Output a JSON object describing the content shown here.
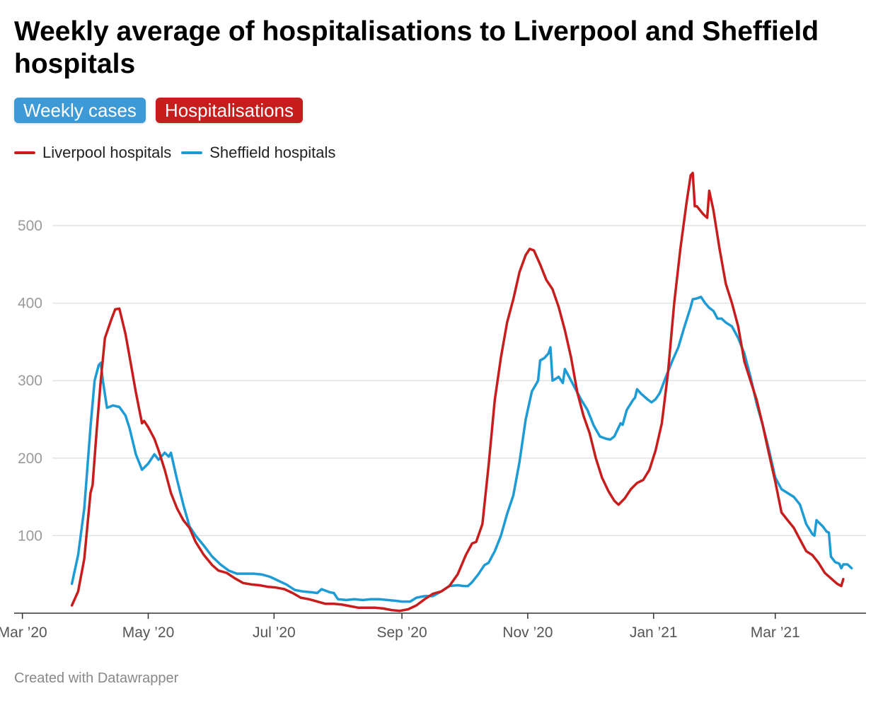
{
  "title": "Weekly average of hospitalisations to Liverpool and Sheffield hospitals",
  "toggles": [
    {
      "label": "Weekly cases",
      "color": "#3d9ad6"
    },
    {
      "label": "Hospitalisations",
      "color": "#c71e1d"
    }
  ],
  "footer": "Created with Datawrapper",
  "chart_data": {
    "type": "line",
    "title": "Weekly average of hospitalisations to Liverpool and Sheffield hospitals",
    "xlabel": "",
    "ylabel": "",
    "x_axis": {
      "type": "date",
      "range": [
        "2020-03-01",
        "2021-04-30"
      ],
      "tick_labels": [
        "Mar ’20",
        "May ’20",
        "Jul ’20",
        "Sep ’20",
        "Nov ’20",
        "Jan ’21",
        "Mar ’21"
      ],
      "tick_dates": [
        "2020-03-01",
        "2020-05-01",
        "2020-07-01",
        "2020-09-01",
        "2020-11-01",
        "2021-01-01",
        "2021-03-01"
      ]
    },
    "y_axis": {
      "range": [
        0,
        570
      ],
      "ticks": [
        100,
        200,
        300,
        400,
        500
      ]
    },
    "grid": true,
    "legend_position": "top-left",
    "series": [
      {
        "name": "Liverpool hospitals",
        "color": "#c71e1d",
        "points": [
          [
            "2020-03-25",
            10
          ],
          [
            "2020-03-28",
            28
          ],
          [
            "2020-03-31",
            70
          ],
          [
            "2020-04-03",
            155
          ],
          [
            "2020-04-04",
            165
          ],
          [
            "2020-04-06",
            235
          ],
          [
            "2020-04-08",
            300
          ],
          [
            "2020-04-10",
            355
          ],
          [
            "2020-04-13",
            378
          ],
          [
            "2020-04-15",
            392
          ],
          [
            "2020-04-17",
            393
          ],
          [
            "2020-04-20",
            360
          ],
          [
            "2020-04-22",
            330
          ],
          [
            "2020-04-25",
            285
          ],
          [
            "2020-04-28",
            245
          ],
          [
            "2020-04-29",
            248
          ],
          [
            "2020-05-01",
            240
          ],
          [
            "2020-05-04",
            225
          ],
          [
            "2020-05-06",
            210
          ],
          [
            "2020-05-09",
            185
          ],
          [
            "2020-05-12",
            155
          ],
          [
            "2020-05-15",
            135
          ],
          [
            "2020-05-18",
            120
          ],
          [
            "2020-05-21",
            110
          ],
          [
            "2020-05-24",
            92
          ],
          [
            "2020-05-28",
            75
          ],
          [
            "2020-06-01",
            62
          ],
          [
            "2020-06-04",
            55
          ],
          [
            "2020-06-08",
            52
          ],
          [
            "2020-06-12",
            45
          ],
          [
            "2020-06-16",
            39
          ],
          [
            "2020-06-20",
            37
          ],
          [
            "2020-06-24",
            36
          ],
          [
            "2020-06-28",
            34
          ],
          [
            "2020-07-02",
            33
          ],
          [
            "2020-07-06",
            31
          ],
          [
            "2020-07-10",
            26
          ],
          [
            "2020-07-14",
            20
          ],
          [
            "2020-07-18",
            18
          ],
          [
            "2020-07-22",
            15
          ],
          [
            "2020-07-26",
            12
          ],
          [
            "2020-07-30",
            12
          ],
          [
            "2020-08-03",
            11
          ],
          [
            "2020-08-07",
            9
          ],
          [
            "2020-08-11",
            7
          ],
          [
            "2020-08-15",
            7
          ],
          [
            "2020-08-19",
            7
          ],
          [
            "2020-08-23",
            6
          ],
          [
            "2020-08-27",
            4
          ],
          [
            "2020-08-31",
            3
          ],
          [
            "2020-09-04",
            5
          ],
          [
            "2020-09-08",
            10
          ],
          [
            "2020-09-12",
            18
          ],
          [
            "2020-09-16",
            25
          ],
          [
            "2020-09-20",
            28
          ],
          [
            "2020-09-24",
            35
          ],
          [
            "2020-09-28",
            50
          ],
          [
            "2020-10-02",
            75
          ],
          [
            "2020-10-05",
            90
          ],
          [
            "2020-10-07",
            92
          ],
          [
            "2020-10-10",
            115
          ],
          [
            "2020-10-13",
            190
          ],
          [
            "2020-10-16",
            275
          ],
          [
            "2020-10-19",
            330
          ],
          [
            "2020-10-22",
            375
          ],
          [
            "2020-10-25",
            405
          ],
          [
            "2020-10-28",
            440
          ],
          [
            "2020-10-31",
            462
          ],
          [
            "2020-11-02",
            470
          ],
          [
            "2020-11-04",
            468
          ],
          [
            "2020-11-07",
            450
          ],
          [
            "2020-11-10",
            430
          ],
          [
            "2020-11-13",
            418
          ],
          [
            "2020-11-16",
            395
          ],
          [
            "2020-11-19",
            365
          ],
          [
            "2020-11-22",
            330
          ],
          [
            "2020-11-25",
            285
          ],
          [
            "2020-11-28",
            255
          ],
          [
            "2020-12-01",
            232
          ],
          [
            "2020-12-04",
            200
          ],
          [
            "2020-12-07",
            175
          ],
          [
            "2020-12-10",
            158
          ],
          [
            "2020-12-13",
            145
          ],
          [
            "2020-12-15",
            140
          ],
          [
            "2020-12-18",
            148
          ],
          [
            "2020-12-21",
            160
          ],
          [
            "2020-12-24",
            168
          ],
          [
            "2020-12-27",
            172
          ],
          [
            "2020-12-30",
            185
          ],
          [
            "2021-01-02",
            210
          ],
          [
            "2021-01-05",
            245
          ],
          [
            "2021-01-08",
            310
          ],
          [
            "2021-01-11",
            400
          ],
          [
            "2021-01-14",
            470
          ],
          [
            "2021-01-17",
            530
          ],
          [
            "2021-01-19",
            565
          ],
          [
            "2021-01-20",
            568
          ],
          [
            "2021-01-21",
            525
          ],
          [
            "2021-01-22",
            525
          ],
          [
            "2021-01-25",
            515
          ],
          [
            "2021-01-27",
            510
          ],
          [
            "2021-01-28",
            545
          ],
          [
            "2021-01-30",
            520
          ],
          [
            "2021-02-02",
            470
          ],
          [
            "2021-02-05",
            425
          ],
          [
            "2021-02-08",
            400
          ],
          [
            "2021-02-11",
            370
          ],
          [
            "2021-02-14",
            325
          ],
          [
            "2021-02-17",
            300
          ],
          [
            "2021-02-20",
            275
          ],
          [
            "2021-02-23",
            242
          ],
          [
            "2021-02-26",
            205
          ],
          [
            "2021-03-01",
            170
          ],
          [
            "2021-03-04",
            130
          ],
          [
            "2021-03-07",
            120
          ],
          [
            "2021-03-10",
            110
          ],
          [
            "2021-03-13",
            95
          ],
          [
            "2021-03-16",
            80
          ],
          [
            "2021-03-19",
            75
          ],
          [
            "2021-03-22",
            65
          ],
          [
            "2021-03-25",
            52
          ],
          [
            "2021-03-28",
            45
          ],
          [
            "2021-03-31",
            38
          ],
          [
            "2021-04-02",
            35
          ],
          [
            "2021-04-03",
            44
          ]
        ]
      },
      {
        "name": "Sheffield hospitals",
        "color": "#1d9bd4",
        "points": [
          [
            "2020-03-25",
            38
          ],
          [
            "2020-03-28",
            75
          ],
          [
            "2020-03-31",
            135
          ],
          [
            "2020-04-03",
            240
          ],
          [
            "2020-04-05",
            300
          ],
          [
            "2020-04-07",
            320
          ],
          [
            "2020-04-08",
            323
          ],
          [
            "2020-04-09",
            300
          ],
          [
            "2020-04-11",
            265
          ],
          [
            "2020-04-14",
            268
          ],
          [
            "2020-04-17",
            266
          ],
          [
            "2020-04-20",
            255
          ],
          [
            "2020-04-22",
            238
          ],
          [
            "2020-04-25",
            205
          ],
          [
            "2020-04-28",
            185
          ],
          [
            "2020-05-01",
            193
          ],
          [
            "2020-05-04",
            205
          ],
          [
            "2020-05-06",
            198
          ],
          [
            "2020-05-09",
            207
          ],
          [
            "2020-05-11",
            202
          ],
          [
            "2020-05-12",
            207
          ],
          [
            "2020-05-15",
            172
          ],
          [
            "2020-05-18",
            140
          ],
          [
            "2020-05-21",
            112
          ],
          [
            "2020-05-24",
            100
          ],
          [
            "2020-05-28",
            87
          ],
          [
            "2020-06-01",
            73
          ],
          [
            "2020-06-05",
            63
          ],
          [
            "2020-06-09",
            55
          ],
          [
            "2020-06-13",
            51
          ],
          [
            "2020-06-17",
            51
          ],
          [
            "2020-06-21",
            51
          ],
          [
            "2020-06-25",
            50
          ],
          [
            "2020-06-29",
            47
          ],
          [
            "2020-07-03",
            42
          ],
          [
            "2020-07-07",
            37
          ],
          [
            "2020-07-11",
            30
          ],
          [
            "2020-07-15",
            28
          ],
          [
            "2020-07-19",
            27
          ],
          [
            "2020-07-22",
            26
          ],
          [
            "2020-07-24",
            31
          ],
          [
            "2020-07-28",
            27
          ],
          [
            "2020-07-30",
            26
          ],
          [
            "2020-08-01",
            18
          ],
          [
            "2020-08-05",
            17
          ],
          [
            "2020-08-09",
            18
          ],
          [
            "2020-08-13",
            17
          ],
          [
            "2020-08-17",
            18
          ],
          [
            "2020-08-21",
            18
          ],
          [
            "2020-08-25",
            17
          ],
          [
            "2020-08-29",
            16
          ],
          [
            "2020-09-01",
            15
          ],
          [
            "2020-09-05",
            15
          ],
          [
            "2020-09-08",
            20
          ],
          [
            "2020-09-12",
            22
          ],
          [
            "2020-09-16",
            22
          ],
          [
            "2020-09-20",
            28
          ],
          [
            "2020-09-24",
            35
          ],
          [
            "2020-09-28",
            36
          ],
          [
            "2020-10-01",
            35
          ],
          [
            "2020-10-03",
            35
          ],
          [
            "2020-10-05",
            40
          ],
          [
            "2020-10-08",
            50
          ],
          [
            "2020-10-11",
            62
          ],
          [
            "2020-10-13",
            65
          ],
          [
            "2020-10-16",
            80
          ],
          [
            "2020-10-19",
            100
          ],
          [
            "2020-10-22",
            128
          ],
          [
            "2020-10-25",
            152
          ],
          [
            "2020-10-28",
            195
          ],
          [
            "2020-10-31",
            250
          ],
          [
            "2020-11-03",
            286
          ],
          [
            "2020-11-06",
            300
          ],
          [
            "2020-11-07",
            326
          ],
          [
            "2020-11-09",
            329
          ],
          [
            "2020-11-11",
            335
          ],
          [
            "2020-11-12",
            343
          ],
          [
            "2020-11-13",
            300
          ],
          [
            "2020-11-15",
            303
          ],
          [
            "2020-11-16",
            305
          ],
          [
            "2020-11-18",
            297
          ],
          [
            "2020-11-19",
            315
          ],
          [
            "2020-11-21",
            305
          ],
          [
            "2020-11-24",
            290
          ],
          [
            "2020-11-27",
            275
          ],
          [
            "2020-11-30",
            262
          ],
          [
            "2020-12-03",
            242
          ],
          [
            "2020-12-06",
            228
          ],
          [
            "2020-12-09",
            225
          ],
          [
            "2020-12-11",
            224
          ],
          [
            "2020-12-13",
            228
          ],
          [
            "2020-12-16",
            245
          ],
          [
            "2020-12-17",
            243
          ],
          [
            "2020-12-19",
            262
          ],
          [
            "2020-12-22",
            275
          ],
          [
            "2020-12-23",
            278
          ],
          [
            "2020-12-24",
            289
          ],
          [
            "2020-12-26",
            283
          ],
          [
            "2020-12-29",
            276
          ],
          [
            "2020-12-31",
            272
          ],
          [
            "2021-01-02",
            276
          ],
          [
            "2021-01-04",
            284
          ],
          [
            "2021-01-07",
            305
          ],
          [
            "2021-01-10",
            325
          ],
          [
            "2021-01-13",
            343
          ],
          [
            "2021-01-16",
            370
          ],
          [
            "2021-01-19",
            395
          ],
          [
            "2021-01-20",
            405
          ],
          [
            "2021-01-22",
            406
          ],
          [
            "2021-01-24",
            408
          ],
          [
            "2021-01-26",
            400
          ],
          [
            "2021-01-28",
            394
          ],
          [
            "2021-01-30",
            390
          ],
          [
            "2021-02-01",
            380
          ],
          [
            "2021-02-03",
            380
          ],
          [
            "2021-02-05",
            375
          ],
          [
            "2021-02-08",
            370
          ],
          [
            "2021-02-11",
            355
          ],
          [
            "2021-02-14",
            335
          ],
          [
            "2021-02-17",
            305
          ],
          [
            "2021-02-20",
            270
          ],
          [
            "2021-02-23",
            242
          ],
          [
            "2021-02-26",
            210
          ],
          [
            "2021-03-01",
            175
          ],
          [
            "2021-03-04",
            160
          ],
          [
            "2021-03-07",
            155
          ],
          [
            "2021-03-10",
            150
          ],
          [
            "2021-03-13",
            140
          ],
          [
            "2021-03-16",
            115
          ],
          [
            "2021-03-19",
            102
          ],
          [
            "2021-03-20",
            100
          ],
          [
            "2021-03-21",
            120
          ],
          [
            "2021-03-24",
            112
          ],
          [
            "2021-03-26",
            105
          ],
          [
            "2021-03-27",
            104
          ],
          [
            "2021-03-28",
            73
          ],
          [
            "2021-03-30",
            66
          ],
          [
            "2021-04-01",
            64
          ],
          [
            "2021-04-02",
            58
          ],
          [
            "2021-04-03",
            63
          ],
          [
            "2021-04-05",
            63
          ],
          [
            "2021-04-07",
            58
          ]
        ]
      }
    ]
  }
}
